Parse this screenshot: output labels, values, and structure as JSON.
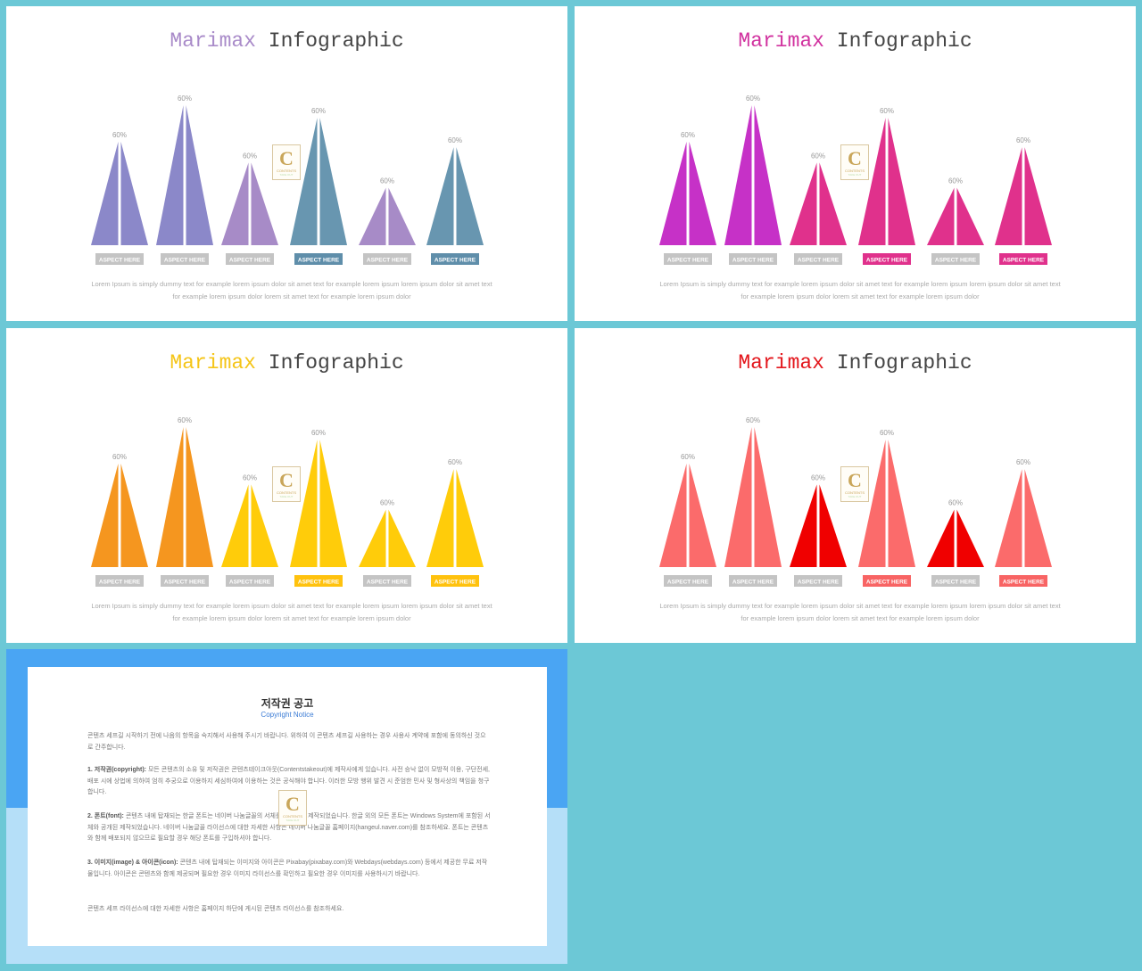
{
  "slides": [
    {
      "title_brand": "Marimax",
      "title_rest": "Infographic",
      "brand_color": "#a98bc9",
      "percent_label": "60%",
      "aspect_label": "ASPECT HERE",
      "body_line1": "Lorem Ipsum is simply dummy text for example lorem ipsum dolor  sit amet text for example lorem ipsum lorem ipsum dolor sit amet text",
      "body_line2": "for example lorem ipsum dolor lorem sit amet text for example lorem ipsum dolor",
      "triangles": [
        {
          "color": "#8b88c9",
          "height": 0.74,
          "highlight": false
        },
        {
          "color": "#8b88c9",
          "height": 1.0,
          "highlight": false
        },
        {
          "color": "#a78bc7",
          "height": 0.59,
          "highlight": false
        },
        {
          "color": "#6896b0",
          "height": 0.91,
          "highlight": true
        },
        {
          "color": "#a78bc7",
          "height": 0.41,
          "highlight": false
        },
        {
          "color": "#6896b0",
          "height": 0.7,
          "highlight": true
        }
      ],
      "label_highlight_color": "#5f8eaa"
    },
    {
      "title_brand": "Marimax",
      "title_rest": "Infographic",
      "brand_color": "#d1329f",
      "percent_label": "60%",
      "aspect_label": "ASPECT HERE",
      "body_line1": "Lorem Ipsum is simply dummy text for example lorem ipsum dolor  sit amet text for example lorem ipsum lorem ipsum dolor sit amet text",
      "body_line2": "for example lorem ipsum dolor lorem sit amet text for example lorem ipsum dolor",
      "triangles": [
        {
          "color": "#c631c7",
          "height": 0.74,
          "highlight": false
        },
        {
          "color": "#c631c7",
          "height": 1.0,
          "highlight": false
        },
        {
          "color": "#e0318c",
          "height": 0.59,
          "highlight": false
        },
        {
          "color": "#e0318c",
          "height": 0.91,
          "highlight": true
        },
        {
          "color": "#e0318c",
          "height": 0.41,
          "highlight": false
        },
        {
          "color": "#e0318c",
          "height": 0.7,
          "highlight": true
        }
      ],
      "label_highlight_color": "#e0318c"
    },
    {
      "title_brand": "Marimax",
      "title_rest": "Infographic",
      "brand_color": "#f5c518",
      "percent_label": "60%",
      "aspect_label": "ASPECT HERE",
      "body_line1": "Lorem Ipsum is simply dummy text for example lorem ipsum dolor  sit amet text for example lorem ipsum lorem ipsum dolor sit amet text",
      "body_line2": "for example lorem ipsum dolor lorem sit amet text for example lorem ipsum dolor",
      "triangles": [
        {
          "color": "#f5961f",
          "height": 0.74,
          "highlight": false
        },
        {
          "color": "#f5961f",
          "height": 1.0,
          "highlight": false
        },
        {
          "color": "#ffcc0a",
          "height": 0.59,
          "highlight": false
        },
        {
          "color": "#ffcc0a",
          "height": 0.91,
          "highlight": true
        },
        {
          "color": "#ffcc0a",
          "height": 0.41,
          "highlight": false
        },
        {
          "color": "#ffcc0a",
          "height": 0.7,
          "highlight": true
        }
      ],
      "label_highlight_color": "#ffc20e"
    },
    {
      "title_brand": "Marimax",
      "title_rest": "Infographic",
      "brand_color": "#e3161c",
      "percent_label": "60%",
      "aspect_label": "ASPECT HERE",
      "body_line1": "Lorem Ipsum is simply dummy text for example lorem ipsum dolor  sit amet text for example lorem ipsum lorem ipsum dolor sit amet text",
      "body_line2": "for example lorem ipsum dolor lorem sit amet text for example lorem ipsum dolor",
      "triangles": [
        {
          "color": "#fb6b6b",
          "height": 0.74,
          "highlight": false
        },
        {
          "color": "#fb6b6b",
          "height": 1.0,
          "highlight": false
        },
        {
          "color": "#f00000",
          "height": 0.59,
          "highlight": false
        },
        {
          "color": "#fb6b6b",
          "height": 0.91,
          "highlight": true
        },
        {
          "color": "#f00000",
          "height": 0.41,
          "highlight": false
        },
        {
          "color": "#fb6b6b",
          "height": 0.7,
          "highlight": true
        }
      ],
      "label_highlight_color": "#f86464"
    }
  ],
  "logo": {
    "letter": "C",
    "line1": "CONTENTS",
    "line2": "TAKE OUT"
  },
  "copyright": {
    "title": "저작권 공고",
    "subtitle": "Copyright Notice",
    "intro": "콘텐츠 세프길 시작하기 전에 나음의 항목을 숙지해서 사용해 주시기 바랍니다. 위하여 이 콘텐츠 세프길 사용하는 경우 사용사 계약에 포함에 동의하신 것으로 간주합니다.",
    "item1_head": "1. 저작권(copyright):",
    "item1": "모든 콘텐츠의 소유 및 저작권은 콘텐츠테이크아웃(Contentstakeout)에 제작사에게 있습니다. 사전 승낙 없이 모방적 이용, 구단전세, 배포 시에 상법에 의하여 엄히 추궁으로 이용하지 세심하여에 이용하는 것은 공식해야 합니다. 이러한 모방 행위 발견 시 준엄한 민사 및 형사상의 책임을 청구합니다.",
    "item2_head": "2. 폰트(font):",
    "item2": "콘텐츠 내에 탑재되는 한글 폰트는 네이버 나눔글꼴의 서체를 이용하여 제작되었습니다. 한글 외의 모든 폰트는 Windows System에 포함된 서체와 공개된 제작되었습니다. 네이버 나눔글꼴 라이선스에 대한 자세한 사항은 네이버 나눔글꼴 홈페이지(hangeul.naver.com)를 참조하세요. 폰트는 콘텐츠와 함께 배포되지 않으므로 필요할 경우 해당 폰트를 구입하셔야 합니다.",
    "item3_head": "3. 이미지(image) & 아이콘(icon):",
    "item3": "콘텐츠 내에 탑재되는 이미지와 아이콘은 Pixabay(pixabay.com)와 Webdays(webdays.com) 등에서 제공한 무료 저작물입니다. 아이콘은 콘텐츠와 함께 제공되며 필요한 경우 이미지 라이선스를 확인하고 필요한 경우 이미지를 사용하시기 바랍니다.",
    "outro": "콘텐츠 세프 라이선스에 대한 자세한 사항은 홈페이지 하단에 게시된 콘텐츠 라이선스를 참조하세요."
  }
}
